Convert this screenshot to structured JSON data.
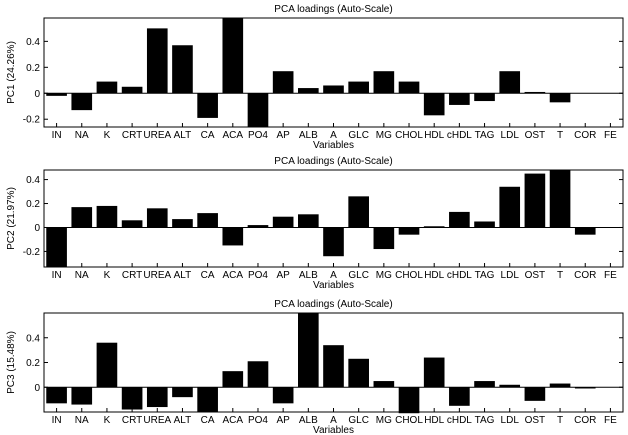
{
  "chart_data": [
    {
      "type": "bar",
      "title": "PCA loadings (Auto-Scale)",
      "xlabel": "Variables",
      "ylabel": "PC1 (24.26%)",
      "categories": [
        "IN",
        "NA",
        "K",
        "CRT",
        "UREA",
        "ALT",
        "CA",
        "ACA",
        "PO4",
        "AP",
        "ALB",
        "A",
        "GLC",
        "MG",
        "CHOL",
        "HDL",
        "cHDL",
        "TAG",
        "LDL",
        "OST",
        "T",
        "COR",
        "FE"
      ],
      "values": [
        -0.02,
        -0.13,
        0.09,
        0.05,
        0.5,
        0.37,
        -0.19,
        0.58,
        -0.26,
        0.17,
        0.04,
        0.06,
        0.09,
        0.17,
        0.09,
        -0.17,
        -0.09,
        -0.06,
        0.17,
        0.01,
        -0.07,
        0.0,
        0.0
      ],
      "yticks": [
        "-0.2",
        "0",
        "0.2",
        "0.4"
      ],
      "ylim": [
        -0.26,
        0.58
      ],
      "grid": false
    },
    {
      "type": "bar",
      "title": "PCA loadings (Auto-Scale)",
      "xlabel": "Variables",
      "ylabel": "PC2 (21.97%)",
      "categories": [
        "IN",
        "NA",
        "K",
        "CRT",
        "UREA",
        "ALT",
        "CA",
        "ACA",
        "PO4",
        "AP",
        "ALB",
        "A",
        "GLC",
        "MG",
        "CHOL",
        "HDL",
        "cHDL",
        "TAG",
        "LDL",
        "OST",
        "T",
        "COR",
        "FE"
      ],
      "values": [
        -0.33,
        0.17,
        0.18,
        0.06,
        0.16,
        0.07,
        0.12,
        -0.15,
        0.02,
        0.09,
        0.11,
        -0.24,
        0.26,
        -0.18,
        -0.06,
        0.01,
        0.13,
        0.05,
        0.34,
        0.45,
        0.48,
        -0.06,
        0.0
      ],
      "yticks": [
        "-0.2",
        "0",
        "0.2",
        "0.4"
      ],
      "ylim": [
        -0.33,
        0.48
      ],
      "grid": false
    },
    {
      "type": "bar",
      "title": "PCA loadings (Auto-Scale)",
      "xlabel": "Variables",
      "ylabel": "PC3 (15.48%)",
      "categories": [
        "IN",
        "NA",
        "K",
        "CRT",
        "UREA",
        "ALT",
        "CA",
        "ACA",
        "PO4",
        "AP",
        "ALB",
        "A",
        "GLC",
        "MG",
        "CHOL",
        "HDL",
        "cHDL",
        "TAG",
        "LDL",
        "OST",
        "T",
        "COR",
        "FE"
      ],
      "values": [
        -0.13,
        -0.14,
        0.36,
        -0.18,
        -0.16,
        -0.08,
        -0.2,
        0.13,
        0.21,
        -0.13,
        0.6,
        0.34,
        0.23,
        0.05,
        -0.21,
        0.24,
        -0.15,
        0.05,
        0.02,
        -0.11,
        0.03,
        -0.01,
        0.0
      ],
      "yticks": [
        "0",
        "0.2",
        "0.4"
      ],
      "ylim": [
        -0.2,
        0.6
      ],
      "grid": false
    }
  ]
}
